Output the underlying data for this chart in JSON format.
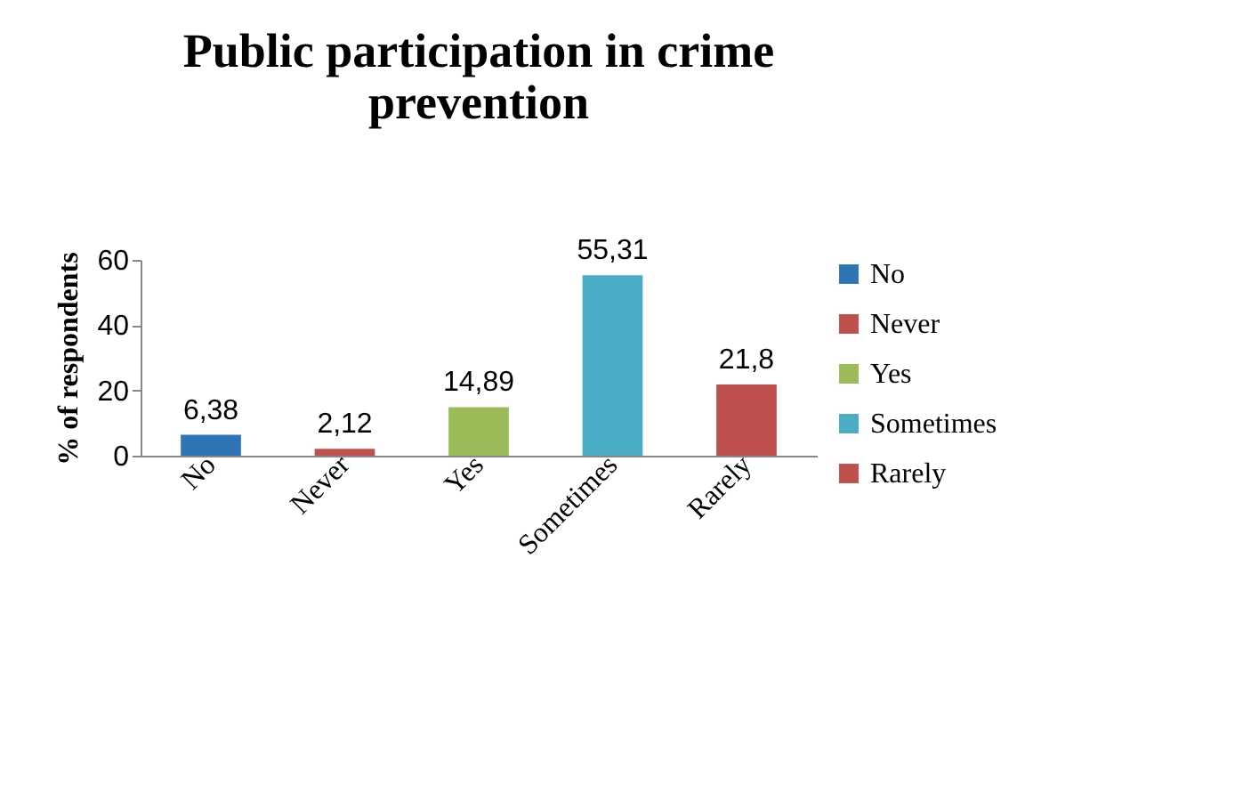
{
  "chart_data": {
    "type": "bar",
    "title": [
      "Public participation in crime",
      "prevention"
    ],
    "ylabel": "% of respondents",
    "categories": [
      "No",
      "Never",
      "Yes",
      "Sometimes",
      "Rarely"
    ],
    "series": [
      {
        "name": "No",
        "color": "#2e75b6",
        "values": [
          6.38,
          null,
          null,
          null,
          null
        ],
        "value_labels": [
          "6,38",
          null,
          null,
          null,
          null
        ]
      },
      {
        "name": "Never",
        "color": "#c0504d",
        "values": [
          null,
          2.12,
          null,
          null,
          null
        ],
        "value_labels": [
          null,
          "2,12",
          null,
          null,
          null
        ]
      },
      {
        "name": "Yes",
        "color": "#9bbb59",
        "values": [
          null,
          null,
          14.89,
          null,
          null
        ],
        "value_labels": [
          null,
          null,
          "14,89",
          null,
          null
        ]
      },
      {
        "name": "Sometimes",
        "color": "#4bacc6",
        "values": [
          null,
          null,
          null,
          55.31,
          null
        ],
        "value_labels": [
          null,
          null,
          null,
          "55,31",
          null
        ]
      },
      {
        "name": "Rarely",
        "color": "#c0504d",
        "values": [
          null,
          null,
          null,
          null,
          21.8
        ],
        "value_labels": [
          null,
          null,
          null,
          null,
          "21,8"
        ]
      }
    ],
    "ylim": [
      0,
      60
    ],
    "yticks": [
      0,
      20,
      40,
      60
    ],
    "grid": false,
    "legend": "right"
  }
}
